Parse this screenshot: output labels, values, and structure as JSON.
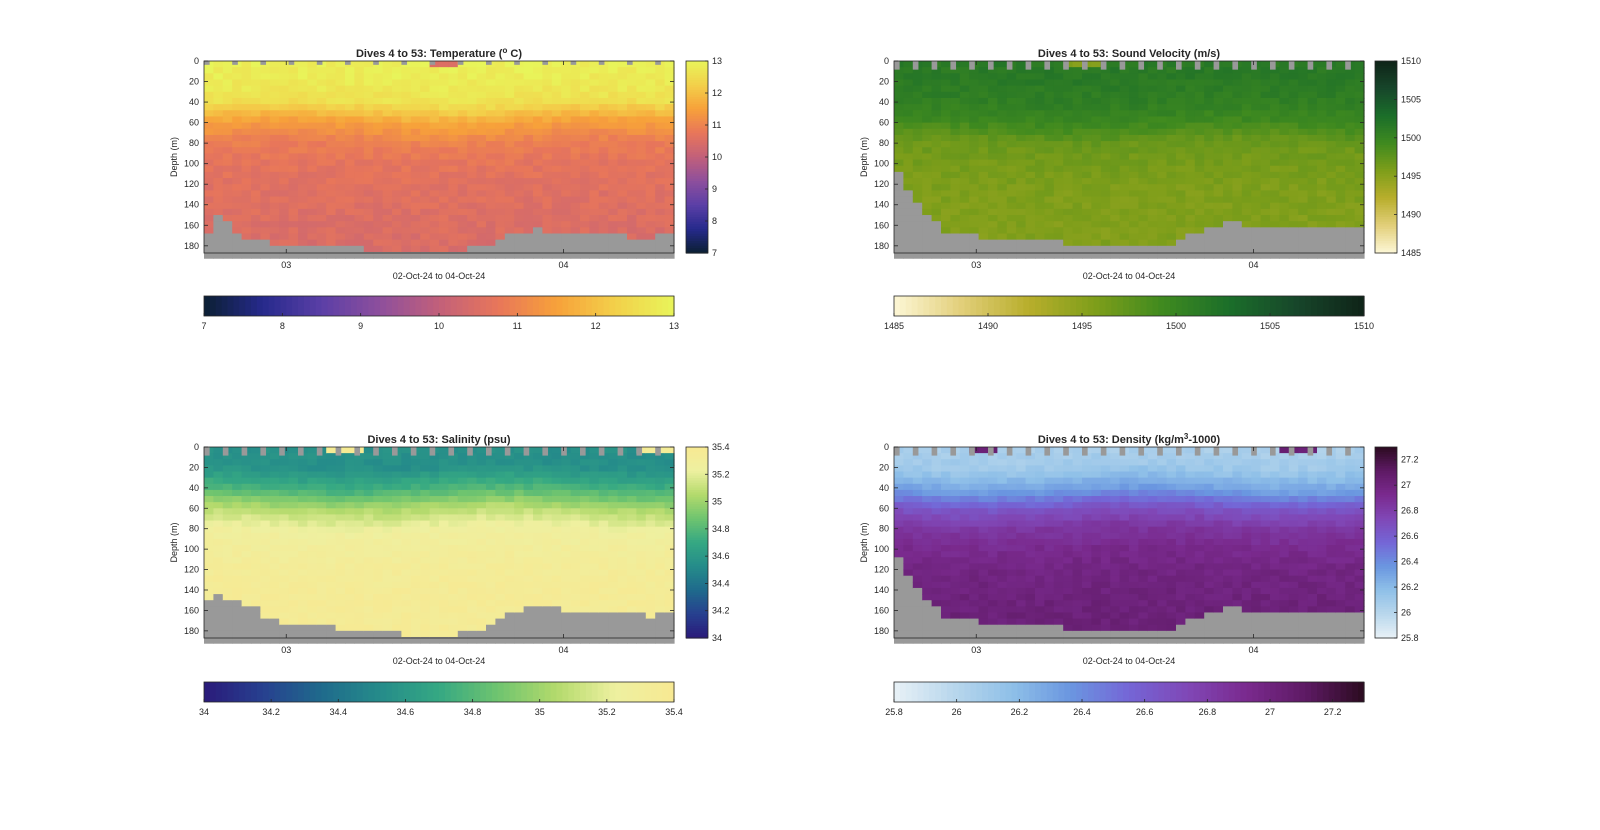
{
  "figure": {
    "background": "#ffffff",
    "axis_color": "#262626",
    "land_color": "#999999"
  },
  "chart_data": [
    {
      "type": "heatmap",
      "id": "temperature",
      "title_main": "Dives 4 to 53: Temperature (",
      "title_sup": "o",
      "title_tail": " C)",
      "xlabel": "02-Oct-24 to 04-Oct-24",
      "ylabel": "Depth (m)",
      "xticks": [
        "03",
        "04"
      ],
      "yticks": [
        0,
        20,
        40,
        60,
        80,
        100,
        120,
        140,
        160,
        180
      ],
      "ylim": [
        0,
        187
      ],
      "x_range": [
        "02-Oct-24",
        "04-Oct-24"
      ],
      "dives": 50,
      "colorbar_ticks": [
        7,
        8,
        9,
        10,
        11,
        12,
        13
      ],
      "vertical_colorbar_ticks": [
        7,
        8,
        9,
        10,
        11,
        12,
        13
      ],
      "clim": [
        7,
        13
      ],
      "colormap": [
        "#0b1f33",
        "#262a8c",
        "#5b3fa6",
        "#8e4f9c",
        "#c2607a",
        "#e8765a",
        "#f7a13a",
        "#f3d04a",
        "#e8f55a"
      ],
      "profile": [
        [
          0,
          12.9
        ],
        [
          20,
          12.8
        ],
        [
          40,
          12.6
        ],
        [
          60,
          11.5
        ],
        [
          80,
          10.9
        ],
        [
          100,
          10.7
        ],
        [
          120,
          10.6
        ],
        [
          140,
          10.55
        ],
        [
          160,
          10.5
        ],
        [
          187,
          10.45
        ]
      ],
      "surface_gap": "light",
      "bottom_depth": [
        170,
        150,
        158,
        165,
        172,
        175,
        176,
        177,
        178,
        178,
        179,
        179,
        180,
        180,
        181,
        181,
        182,
        183,
        183,
        184,
        184,
        184,
        185,
        185,
        185,
        185,
        184,
        183,
        182,
        181,
        178,
        172,
        168,
        166,
        165,
        164,
        165,
        166,
        166,
        167,
        168,
        168,
        169,
        170,
        170,
        171,
        171,
        171,
        170,
        170
      ]
    },
    {
      "type": "heatmap",
      "id": "sound-velocity",
      "title_main": "Dives 4 to 53: Sound Velocity (m/s)",
      "title_sup": "",
      "title_tail": "",
      "xlabel": "02-Oct-24 to 04-Oct-24",
      "ylabel": "Depth (m)",
      "xticks": [
        "03",
        "04"
      ],
      "yticks": [
        0,
        20,
        40,
        60,
        80,
        100,
        120,
        140,
        160,
        180
      ],
      "ylim": [
        0,
        187
      ],
      "x_range": [
        "02-Oct-24",
        "04-Oct-24"
      ],
      "dives": 50,
      "colorbar_ticks": [
        1485,
        1490,
        1495,
        1500,
        1505,
        1510
      ],
      "vertical_colorbar_ticks": [
        1485,
        1490,
        1495,
        1500,
        1505,
        1510
      ],
      "clim": [
        1485,
        1510
      ],
      "colormap": [
        "#fdf7d6",
        "#e2cf7a",
        "#b8ae2c",
        "#7e9e1a",
        "#3f8a1f",
        "#1b6e2a",
        "#17462a",
        "#0f2418"
      ],
      "profile": [
        [
          0,
          1501.5
        ],
        [
          20,
          1501.3
        ],
        [
          40,
          1500.8
        ],
        [
          60,
          1499.5
        ],
        [
          80,
          1496.8
        ],
        [
          100,
          1496.2
        ],
        [
          120,
          1495.8
        ],
        [
          140,
          1495.6
        ],
        [
          160,
          1495.5
        ],
        [
          187,
          1495.5
        ]
      ],
      "surface_gap": "teeth",
      "bottom_depth": [
        110,
        125,
        140,
        150,
        158,
        165,
        168,
        170,
        170,
        172,
        172,
        173,
        173,
        174,
        175,
        175,
        176,
        176,
        177,
        178,
        178,
        179,
        180,
        181,
        181,
        182,
        181,
        180,
        179,
        178,
        175,
        170,
        165,
        162,
        160,
        158,
        158,
        159,
        160,
        160,
        161,
        161,
        162,
        162,
        163,
        163,
        164,
        164,
        163,
        160
      ]
    },
    {
      "type": "heatmap",
      "id": "salinity",
      "title_main": "Dives 4 to 53: Salinity (psu)",
      "title_sup": "",
      "title_tail": "",
      "xlabel": "02-Oct-24 to 04-Oct-24",
      "ylabel": "Depth (m)",
      "xticks": [
        "03",
        "04"
      ],
      "yticks": [
        0,
        20,
        40,
        60,
        80,
        100,
        120,
        140,
        160,
        180
      ],
      "ylim": [
        0,
        187
      ],
      "x_range": [
        "02-Oct-24",
        "04-Oct-24"
      ],
      "dives": 50,
      "colorbar_ticks": [
        "34",
        "34.2",
        "34.4",
        "34.6",
        "34.8",
        "35",
        "35.2",
        "35.4"
      ],
      "vertical_colorbar_ticks": [
        34,
        34.2,
        34.4,
        34.6,
        34.8,
        35,
        35.2,
        35.4
      ],
      "clim": [
        34,
        35.4
      ],
      "colormap": [
        "#2a1a7a",
        "#27408f",
        "#1f6a8c",
        "#258c8a",
        "#35a883",
        "#6fc46f",
        "#b3da6c",
        "#eef0a0",
        "#f7e992"
      ],
      "profile": [
        [
          0,
          34.55
        ],
        [
          20,
          34.55
        ],
        [
          40,
          34.75
        ],
        [
          60,
          35.05
        ],
        [
          80,
          35.25
        ],
        [
          100,
          35.3
        ],
        [
          120,
          35.33
        ],
        [
          140,
          35.35
        ],
        [
          160,
          35.35
        ],
        [
          187,
          35.35
        ]
      ],
      "surface_gap": "teeth",
      "bottom_depth": [
        150,
        145,
        150,
        152,
        155,
        158,
        165,
        170,
        172,
        173,
        174,
        175,
        175,
        176,
        177,
        178,
        178,
        179,
        180,
        181,
        182,
        183,
        183,
        184,
        184,
        184,
        183,
        182,
        181,
        180,
        172,
        166,
        163,
        160,
        158,
        157,
        158,
        158,
        159,
        159,
        160,
        160,
        161,
        161,
        162,
        163,
        164,
        165,
        164,
        162
      ]
    },
    {
      "type": "heatmap",
      "id": "density",
      "title_main": "Dives 4 to 53: Density (kg/m",
      "title_sup": "3",
      "title_tail": "-1000)",
      "xlabel": "02-Oct-24 to 04-Oct-24",
      "ylabel": "Depth (m)",
      "xticks": [
        "03",
        "04"
      ],
      "yticks": [
        0,
        20,
        40,
        60,
        80,
        100,
        120,
        140,
        160,
        180
      ],
      "ylim": [
        0,
        187
      ],
      "x_range": [
        "02-Oct-24",
        "04-Oct-24"
      ],
      "dives": 50,
      "colorbar_ticks": [
        "25.8",
        "26",
        "26.2",
        "26.4",
        "26.6",
        "26.8",
        "27",
        "27.2"
      ],
      "vertical_colorbar_ticks": [
        25.8,
        26,
        26.2,
        26.4,
        26.6,
        26.8,
        27,
        27.2
      ],
      "clim": [
        25.8,
        27.3
      ],
      "colormap": [
        "#e8f1f6",
        "#b9d7ec",
        "#8fc0e8",
        "#6a96e0",
        "#7466d6",
        "#8047b6",
        "#7a2a8e",
        "#5e1a64",
        "#2b0b20"
      ],
      "profile": [
        [
          0,
          26.05
        ],
        [
          20,
          26.1
        ],
        [
          40,
          26.3
        ],
        [
          60,
          26.65
        ],
        [
          80,
          26.85
        ],
        [
          100,
          26.93
        ],
        [
          120,
          26.98
        ],
        [
          140,
          27.0
        ],
        [
          160,
          27.02
        ],
        [
          187,
          27.03
        ]
      ],
      "surface_gap": "teeth",
      "bottom_depth": [
        110,
        125,
        140,
        150,
        158,
        165,
        168,
        170,
        170,
        172,
        172,
        173,
        173,
        174,
        175,
        175,
        176,
        176,
        177,
        178,
        178,
        179,
        180,
        181,
        181,
        182,
        181,
        180,
        179,
        178,
        175,
        170,
        165,
        162,
        160,
        158,
        158,
        159,
        160,
        160,
        161,
        161,
        162,
        162,
        163,
        163,
        164,
        164,
        163,
        160
      ]
    }
  ]
}
